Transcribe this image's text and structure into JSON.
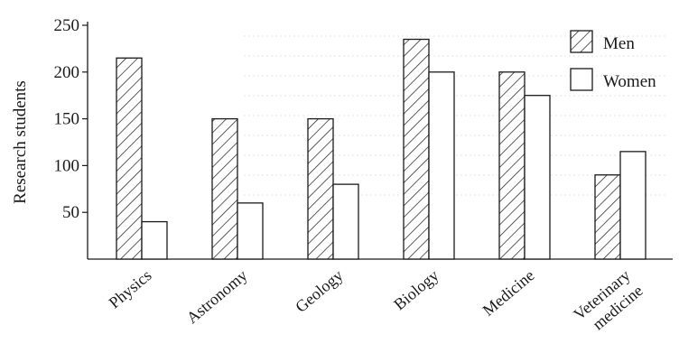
{
  "chart_data": {
    "type": "bar",
    "ylabel": "Research students",
    "xlabel": "",
    "ylim": [
      0,
      250
    ],
    "yticks": [
      "50",
      "100",
      "150",
      "200",
      "250"
    ],
    "categories": [
      [
        "Physics"
      ],
      [
        "Astronomy"
      ],
      [
        "Geology"
      ],
      [
        "Biology"
      ],
      [
        "Medicine"
      ],
      [
        "Veterinary",
        "medicine"
      ]
    ],
    "series": [
      {
        "name": "Men",
        "pattern": "hatched",
        "values": [
          215,
          150,
          150,
          235,
          200,
          90
        ]
      },
      {
        "name": "Women",
        "pattern": "plain",
        "values": [
          40,
          60,
          80,
          200,
          175,
          115
        ]
      }
    ],
    "legend_position": "top-right",
    "grid": false,
    "colors": {
      "stroke": "#1a1a1a",
      "background": "#ffffff"
    }
  }
}
